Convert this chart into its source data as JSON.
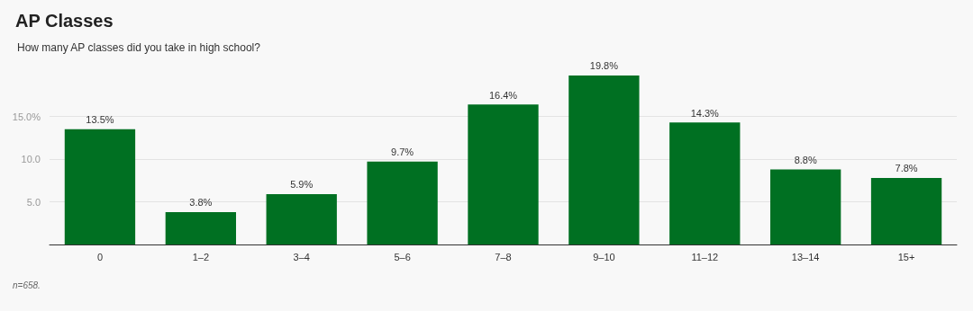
{
  "chart_data": {
    "type": "bar",
    "title": "AP Classes",
    "subtitle": "How many AP classes did you take in high school?",
    "categories": [
      "0",
      "1–2",
      "3–4",
      "5–6",
      "7–8",
      "9–10",
      "11–12",
      "13–14",
      "15+"
    ],
    "values": [
      13.5,
      3.8,
      5.9,
      9.7,
      16.4,
      19.8,
      14.3,
      8.8,
      7.8
    ],
    "value_labels": [
      "13.5%",
      "3.8%",
      "5.9%",
      "9.7%",
      "16.4%",
      "19.8%",
      "14.3%",
      "8.8%",
      "7.8%"
    ],
    "color": "#007022",
    "ylim": [
      0,
      20
    ],
    "yticks": [
      {
        "value": 5,
        "label": "5.0"
      },
      {
        "value": 10,
        "label": "10.0"
      },
      {
        "value": 15,
        "label": "15.0%"
      }
    ],
    "grid": "y",
    "annotations": [
      "n=658."
    ]
  }
}
